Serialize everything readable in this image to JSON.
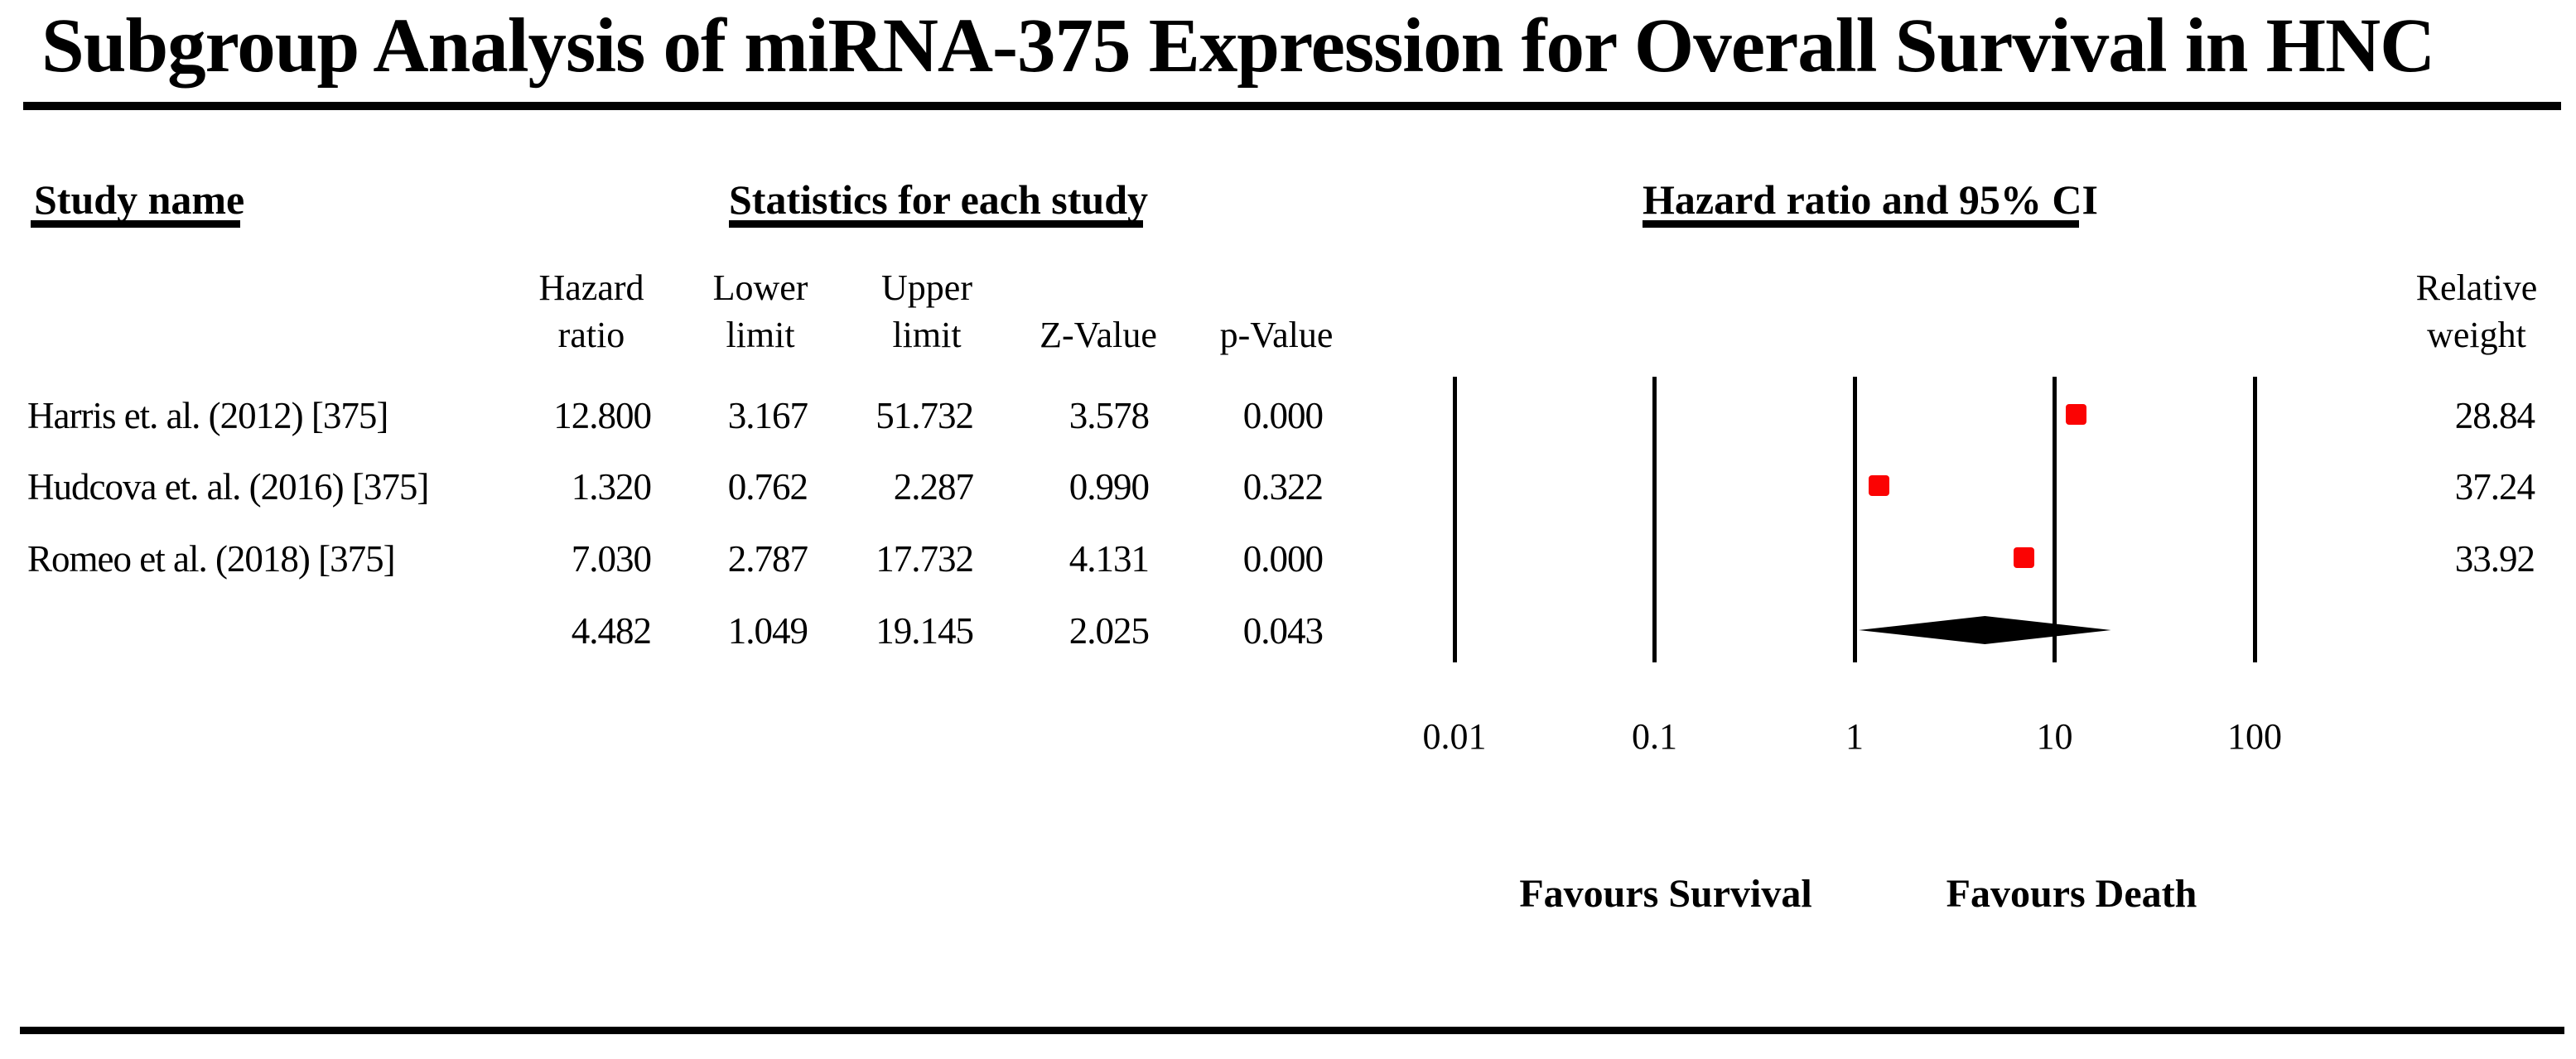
{
  "title": "Subgroup Analysis of miRNA-375 Expression for Overall Survival in HNC",
  "section_headers": {
    "study_name": "Study name",
    "statistics": "Statistics for each study",
    "hazard_ci": "Hazard ratio and 95% CI"
  },
  "column_headers": {
    "hazard": [
      "Hazard",
      "ratio"
    ],
    "lower": [
      "Lower",
      "limit"
    ],
    "upper": [
      "Upper",
      "limit"
    ],
    "z": "Z-Value",
    "p": "p-Value",
    "weight": [
      "Relative",
      "weight"
    ]
  },
  "chart_data": {
    "type": "forest",
    "title": "Subgroup Analysis of miRNA-375 Expression for Overall Survival in HNC",
    "x_axis": {
      "scale": "log10",
      "range": [
        0.01,
        100
      ],
      "ticks": [
        0.01,
        0.1,
        1,
        10,
        100
      ],
      "tick_labels": [
        "0.01",
        "0.1",
        "1",
        "10",
        "100"
      ]
    },
    "grid": "vertical-lines-at-ticks",
    "legend_position": "none",
    "marker_color": "#fb0303",
    "diamond_color": "#000000",
    "studies": [
      {
        "name": "Harris et. al. (2012) [375]",
        "hazard_ratio": 12.8,
        "lower_limit": 3.167,
        "upper_limit": 51.732,
        "z_value": 3.578,
        "p_value": 0.0,
        "relative_weight": 28.84
      },
      {
        "name": "Hudcova et. al. (2016) [375]",
        "hazard_ratio": 1.32,
        "lower_limit": 0.762,
        "upper_limit": 2.287,
        "z_value": 0.99,
        "p_value": 0.322,
        "relative_weight": 37.24
      },
      {
        "name": "Romeo et al. (2018) [375]",
        "hazard_ratio": 7.03,
        "lower_limit": 2.787,
        "upper_limit": 17.732,
        "z_value": 4.131,
        "p_value": 0.0,
        "relative_weight": 33.92
      }
    ],
    "pooled": {
      "hazard_ratio": 4.482,
      "lower_limit": 1.049,
      "upper_limit": 19.145,
      "z_value": 2.025,
      "p_value": 0.043
    },
    "footer_labels": {
      "left": "Favours Survival",
      "right": "Favours Death"
    }
  }
}
